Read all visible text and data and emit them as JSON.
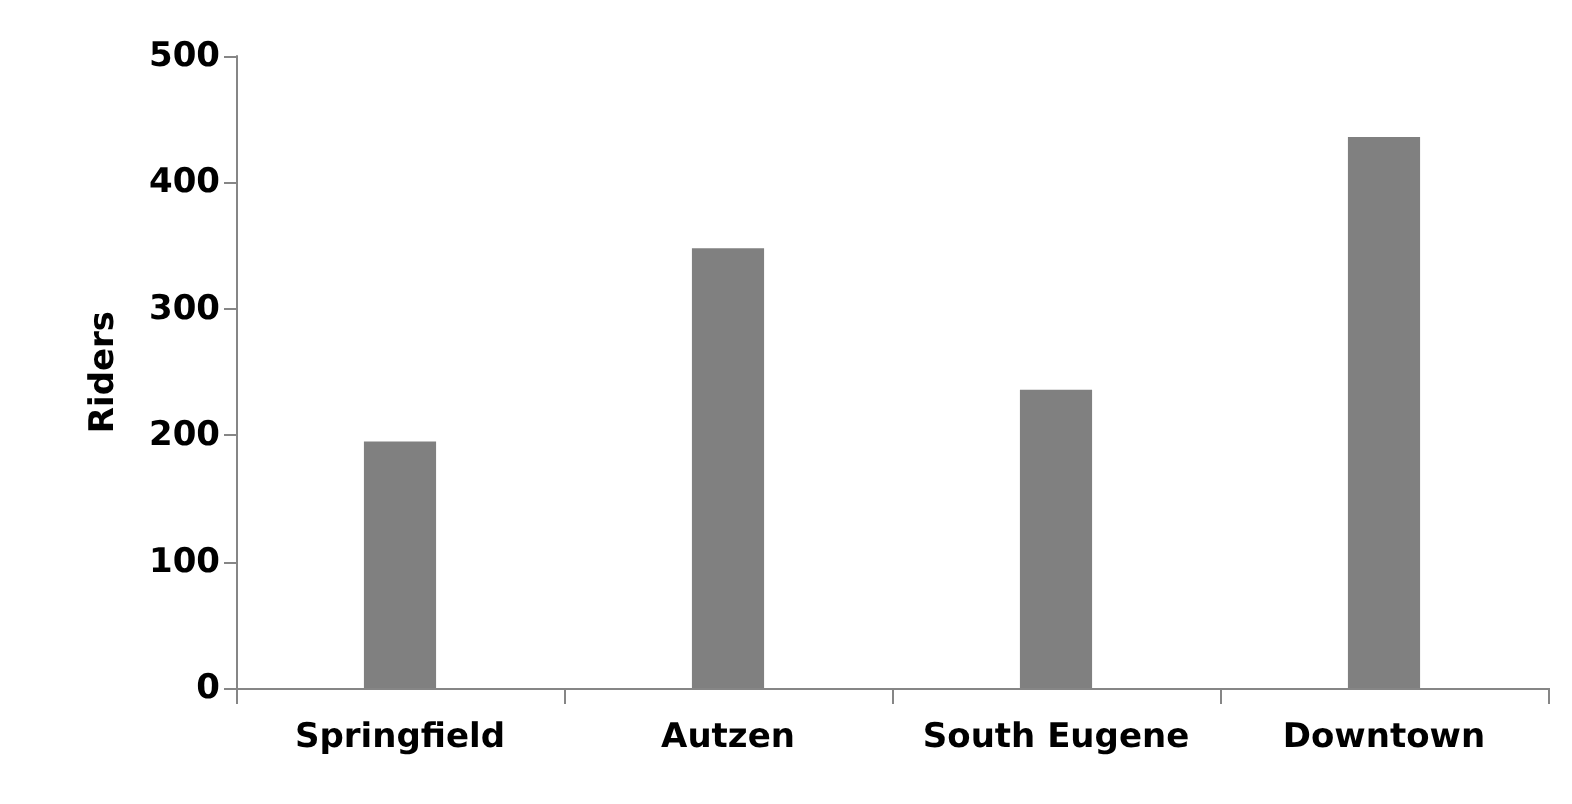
{
  "chart_data": {
    "type": "bar",
    "ylabel": "Riders",
    "categories": [
      "Springfield",
      "Autzen",
      "South Eugene",
      "Downtown"
    ],
    "values": [
      195,
      348,
      236,
      436
    ],
    "color": "#808080",
    "ylim": [
      0,
      500
    ],
    "yticks": [
      0,
      100,
      200,
      300,
      400,
      500
    ],
    "grid": false
  }
}
